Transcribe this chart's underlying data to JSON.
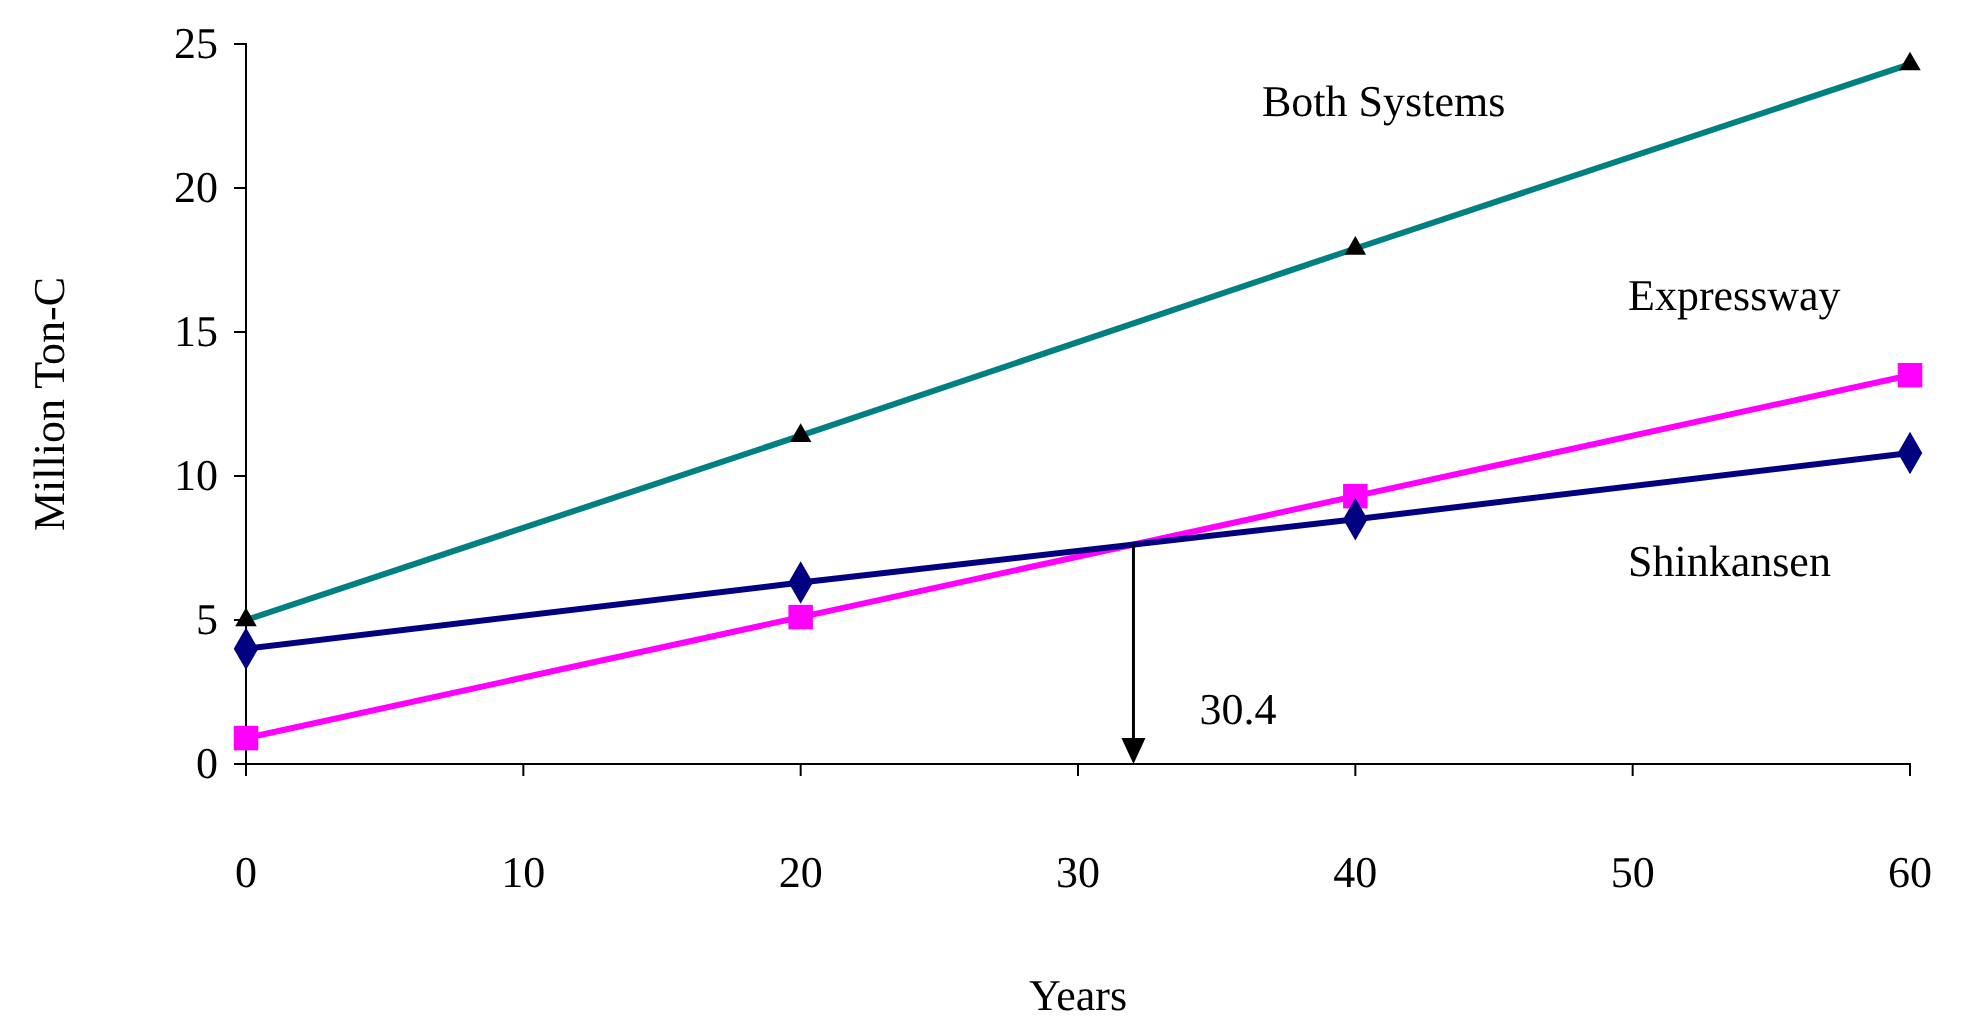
{
  "chart_data": {
    "type": "line",
    "xlabel": "Years",
    "ylabel": "Million Ton-C",
    "x": [
      0,
      20,
      40,
      60
    ],
    "series": [
      {
        "name": "Both Systems",
        "color": "#008080",
        "marker": "triangle",
        "values": [
          5.0,
          11.4,
          17.9,
          24.3
        ]
      },
      {
        "name": "Expressway",
        "color": "#ff00ff",
        "marker": "square",
        "values": [
          0.9,
          5.1,
          9.3,
          13.5
        ]
      },
      {
        "name": "Shinkansen",
        "color": "#000080",
        "marker": "diamond",
        "values": [
          4.0,
          6.3,
          8.5,
          10.8
        ]
      }
    ],
    "xlim": [
      0,
      60
    ],
    "xticks": [
      0,
      10,
      20,
      30,
      40,
      50,
      60
    ],
    "ylim": [
      0,
      25
    ],
    "yticks": [
      0,
      5,
      10,
      15,
      20,
      25
    ],
    "grid": false,
    "legend": false,
    "annotations": [
      "30.4"
    ]
  }
}
